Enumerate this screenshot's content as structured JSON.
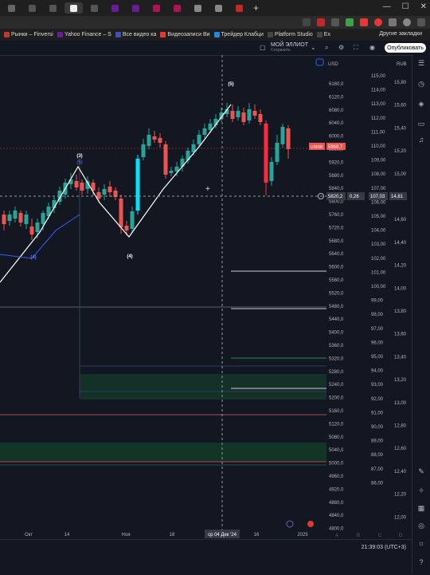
{
  "browser": {
    "bookmarks": [
      {
        "label": "Рынки – Finversi",
        "color": "#c0392b"
      },
      {
        "label": "Yahoo Finance – S",
        "color": "#6a1b9a"
      },
      {
        "label": "Все видео ка",
        "color": "#3f51b5"
      },
      {
        "label": "Видеозаписи Ви",
        "color": "#e53935"
      },
      {
        "label": "Трейдер Клабци",
        "color": "#1e88e5"
      },
      {
        "label": "Platform Studio",
        "color": "#444"
      },
      {
        "label": "Ex",
        "color": "#444"
      }
    ],
    "other_bookmarks": "Другие закладки"
  },
  "toolbar": {
    "layout_name": "МОЙ ЭЛЛИОТ",
    "layout_sub": "Сохранить",
    "publish_label": "Опубликовать",
    "currency": "USD",
    "currency_right": "RUB"
  },
  "chart": {
    "wave_labels": [
      "(3)",
      "(4)",
      "(5)",
      "(4)",
      "(5)"
    ],
    "wave_label_3_sub": "(5)",
    "x_ticks": [
      "Окт",
      "14",
      "Ноя",
      "18",
      "16",
      "2025"
    ],
    "crosshair_date": "ср 04 Дек '24",
    "price_axis": [
      "6160,0",
      "6120,0",
      "6080,0",
      "6040,0",
      "6000,0",
      "5960,0",
      "5920,0",
      "5880,0",
      "5840,0",
      "5800,0",
      "5760,0",
      "5720,0",
      "5680,0",
      "5640,0",
      "5600,0",
      "5560,0",
      "5520,0",
      "5480,0",
      "5440,0",
      "5400,0",
      "5360,0",
      "5320,0",
      "5280,0",
      "5240,0",
      "5200,0",
      "5160,0",
      "5120,0",
      "5080,0",
      "5040,0",
      "5000,0",
      "4960,0",
      "4920,0",
      "4880,0",
      "4840,0",
      "4800,0"
    ],
    "axis2": [
      "115,00",
      "114,00",
      "113,00",
      "112,00",
      "111,00",
      "110,00",
      "109,00",
      "108,00",
      "107,00",
      "106,00",
      "105,00",
      "104,00",
      "103,00",
      "102,00",
      "101,00",
      "100,00",
      "99,00",
      "98,00",
      "97,00",
      "96,00",
      "95,00",
      "94,00",
      "93,00",
      "92,00",
      "91,00",
      "90,00",
      "89,00",
      "88,00",
      "87,00",
      "86,00"
    ],
    "axis3": [
      "15,80",
      "15,60",
      "15,40",
      "15,20",
      "15,00",
      "14,80",
      "14,60",
      "14,40",
      "14,20",
      "14,00",
      "13,80",
      "13,60",
      "13,40",
      "13,20",
      "13,00",
      "12,80",
      "12,60",
      "12,40",
      "12,20",
      "12,00"
    ],
    "symbol_tag": "US500",
    "last_price": "5969,7",
    "cross_price": "5820,2",
    "cross_change": "0,26",
    "cross_axis2": "107,03",
    "cross_axis3": "14,81",
    "footer_letters": [
      "A",
      "B",
      "C",
      "D"
    ],
    "timezone": "21:39:03 (UTC+3)"
  }
}
